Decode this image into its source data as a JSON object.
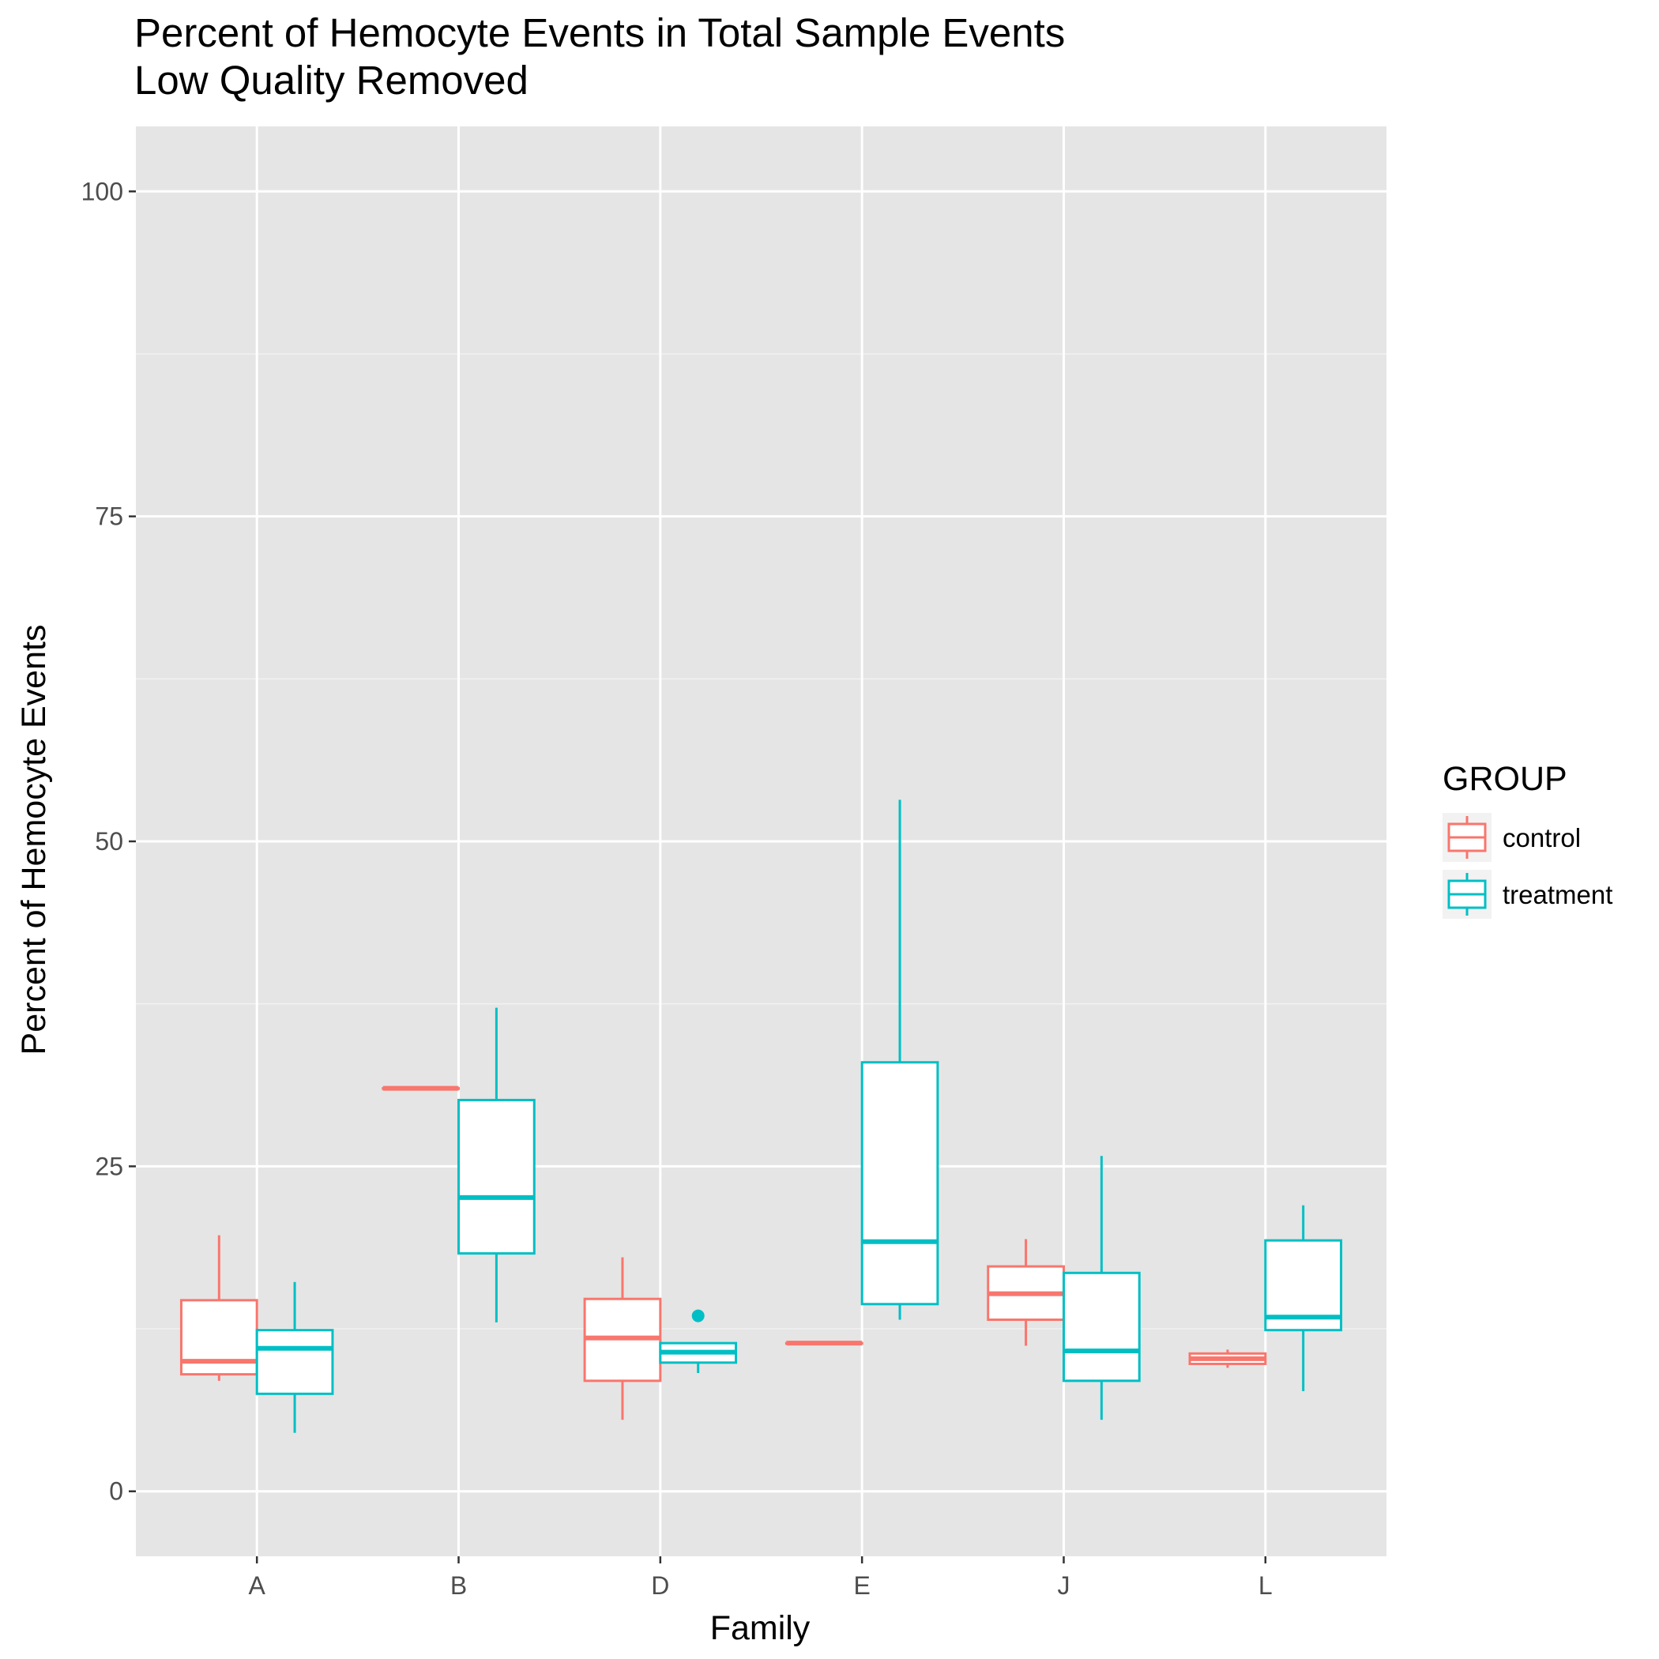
{
  "chart_data": {
    "type": "boxplot",
    "title": "Percent of Hemocyte Events in Total Sample Events",
    "subtitle": "Low Quality Removed",
    "xlabel": "Family",
    "ylabel": "Percent of Hemocyte Events",
    "ylim": [
      -5,
      105
    ],
    "yticks": [
      0,
      25,
      50,
      75,
      100
    ],
    "grid": true,
    "categories": [
      "A",
      "B",
      "D",
      "E",
      "J",
      "L"
    ],
    "legend": {
      "title": "GROUP",
      "position": "right",
      "entries": [
        "control",
        "treatment"
      ]
    },
    "series": [
      {
        "name": "control",
        "color": "#F8766D",
        "boxes": [
          {
            "category": "A",
            "min": 8.5,
            "q1": 9.0,
            "median": 10.0,
            "q3": 14.7,
            "max": 19.7,
            "outliers": []
          },
          {
            "category": "B",
            "min": 31.0,
            "q1": 31.0,
            "median": 31.0,
            "q3": 31.0,
            "max": 31.0,
            "outliers": []
          },
          {
            "category": "D",
            "min": 5.5,
            "q1": 8.5,
            "median": 11.8,
            "q3": 14.8,
            "max": 18.0,
            "outliers": []
          },
          {
            "category": "E",
            "min": 11.4,
            "q1": 11.4,
            "median": 11.4,
            "q3": 11.4,
            "max": 11.4,
            "outliers": []
          },
          {
            "category": "J",
            "min": 11.2,
            "q1": 13.2,
            "median": 15.2,
            "q3": 17.3,
            "max": 19.4,
            "outliers": []
          },
          {
            "category": "L",
            "min": 9.5,
            "q1": 9.8,
            "median": 10.2,
            "q3": 10.6,
            "max": 10.9,
            "outliers": []
          }
        ]
      },
      {
        "name": "treatment",
        "color": "#00BFC4",
        "boxes": [
          {
            "category": "A",
            "min": 4.5,
            "q1": 7.5,
            "median": 11.0,
            "q3": 12.4,
            "max": 16.1,
            "outliers": []
          },
          {
            "category": "B",
            "min": 13.0,
            "q1": 18.3,
            "median": 22.6,
            "q3": 30.1,
            "max": 37.2,
            "outliers": []
          },
          {
            "category": "D",
            "min": 9.1,
            "q1": 9.9,
            "median": 10.7,
            "q3": 11.4,
            "max": 11.4,
            "outliers": [
              13.5
            ]
          },
          {
            "category": "E",
            "min": 13.2,
            "q1": 14.4,
            "median": 19.2,
            "q3": 33.0,
            "max": 53.2,
            "outliers": []
          },
          {
            "category": "J",
            "min": 5.5,
            "q1": 8.5,
            "median": 10.8,
            "q3": 16.8,
            "max": 25.8,
            "outliers": []
          },
          {
            "category": "L",
            "min": 7.7,
            "q1": 12.4,
            "median": 13.4,
            "q3": 19.3,
            "max": 22.0,
            "outliers": []
          }
        ]
      }
    ]
  }
}
